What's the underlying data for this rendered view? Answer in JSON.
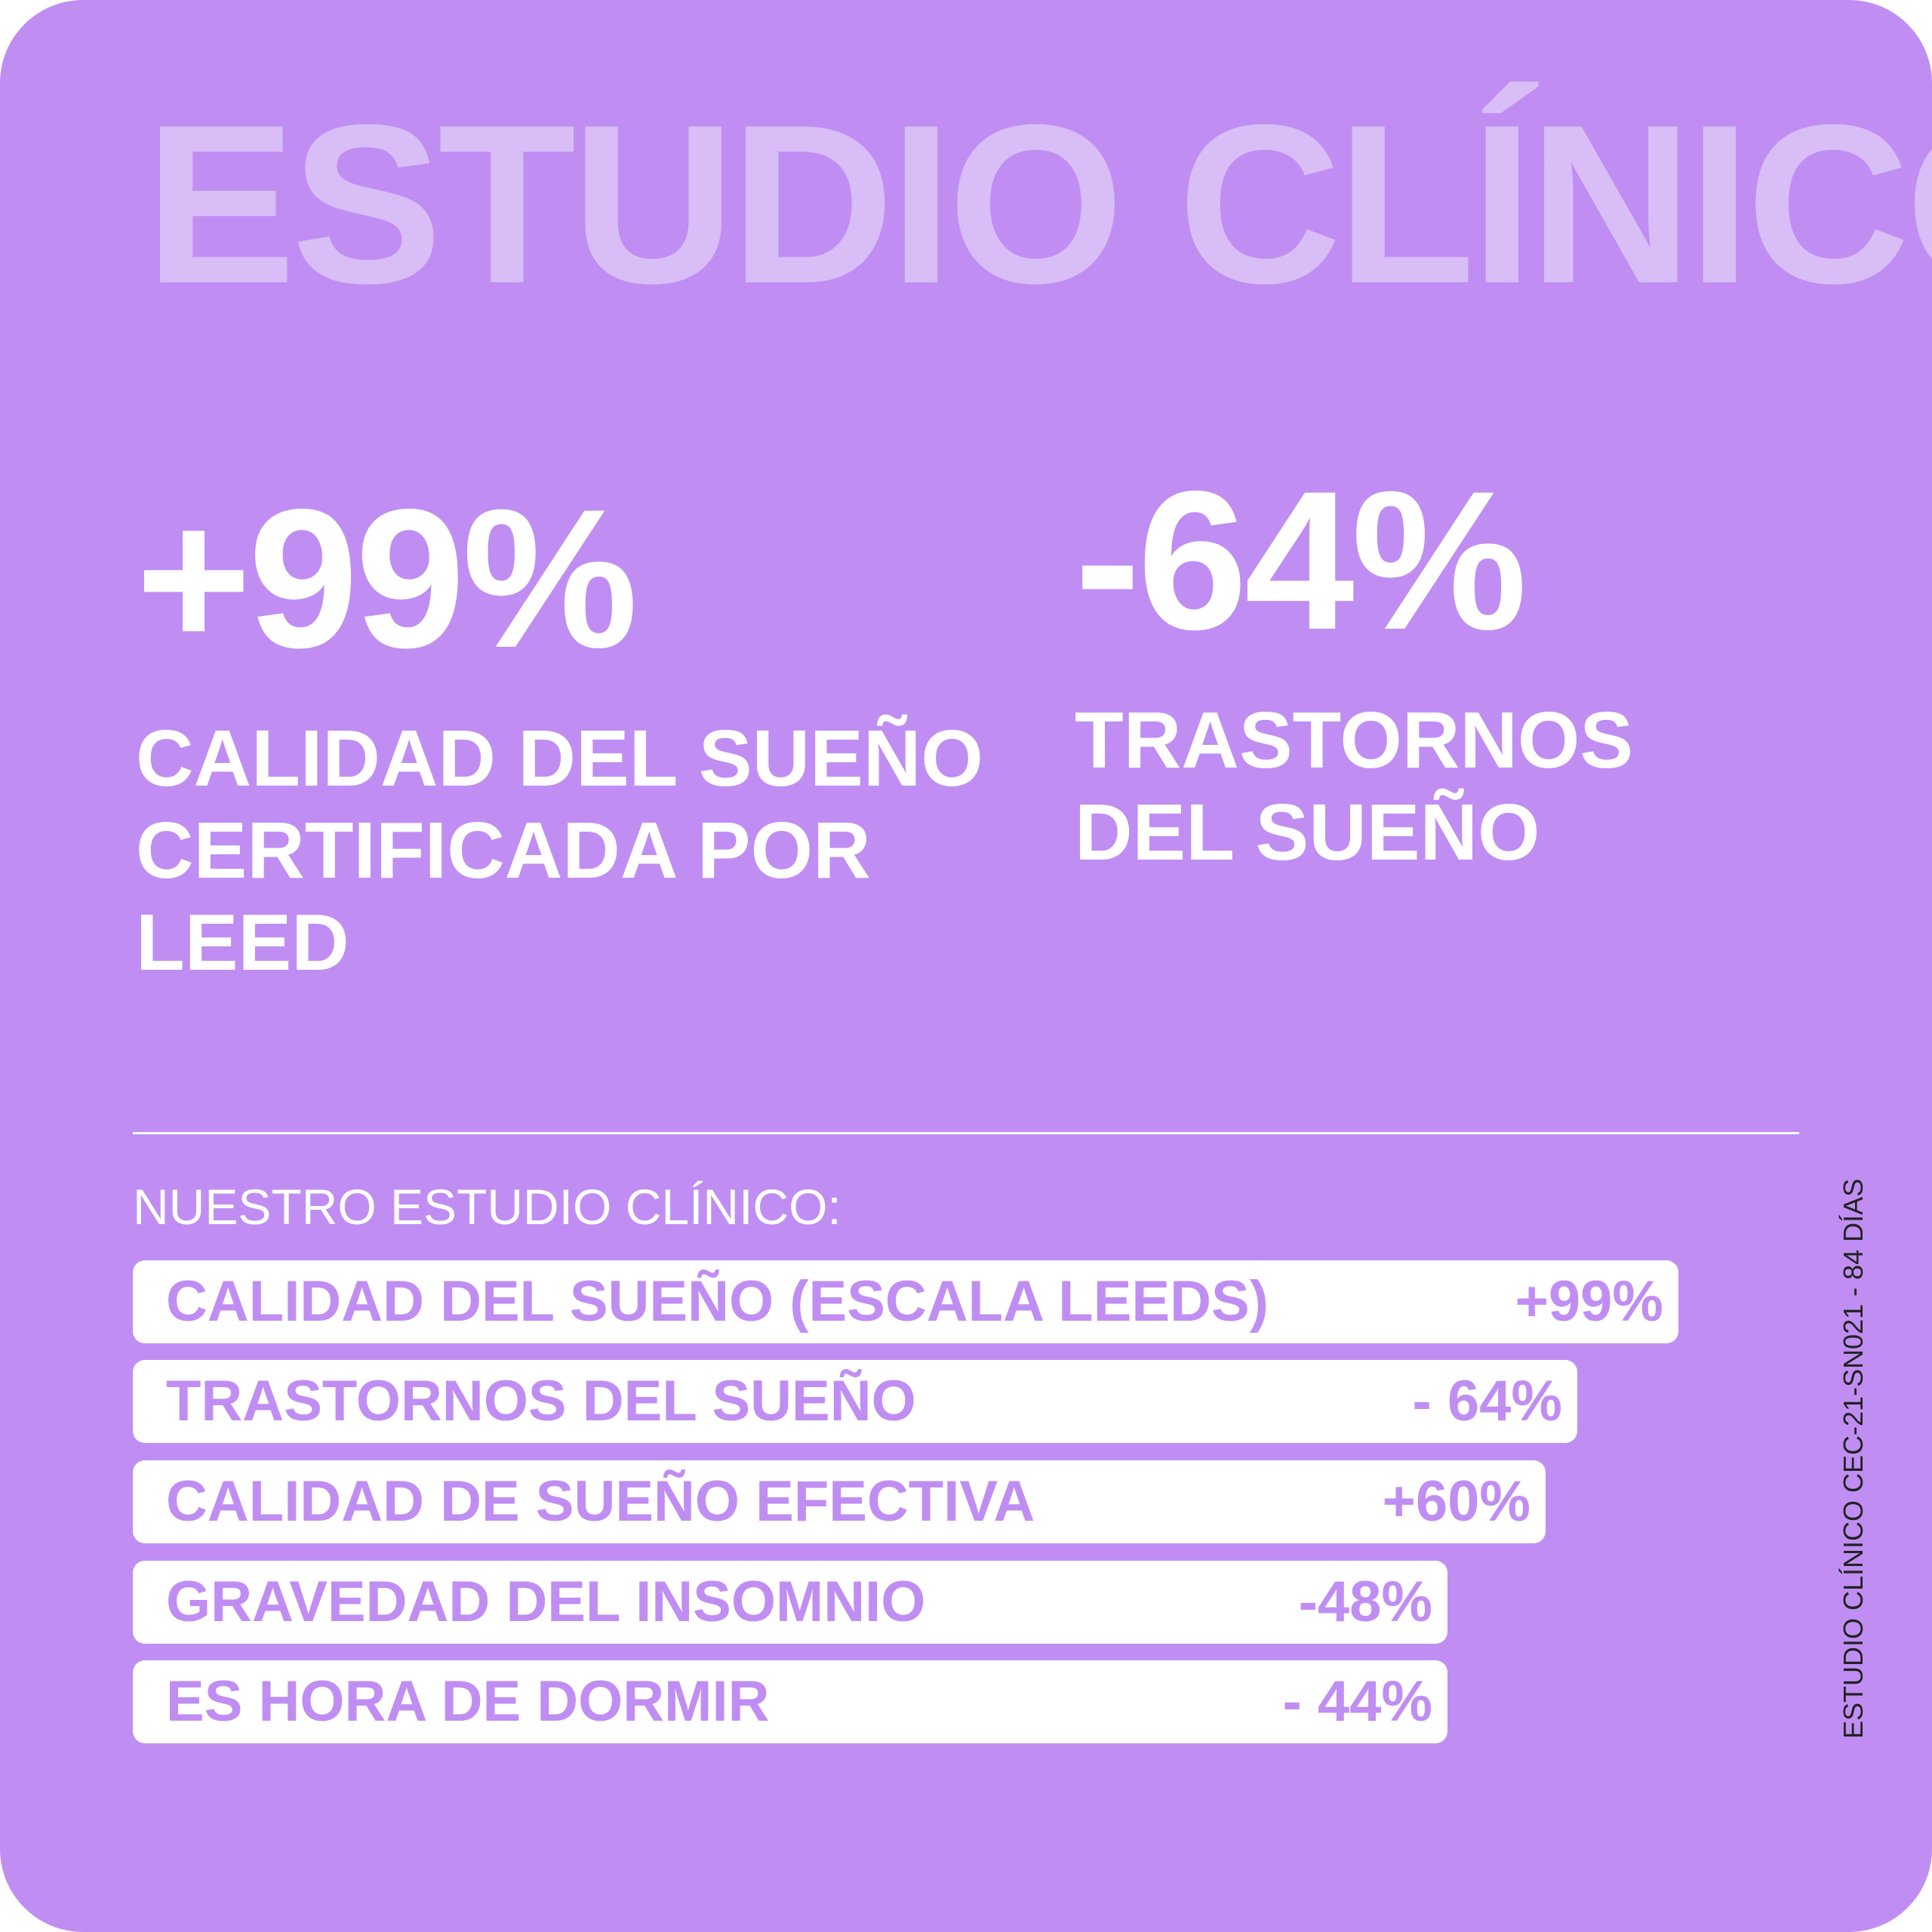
{
  "title": "ESTUDIO CLÍNICO",
  "highlights": [
    {
      "value": "+99%",
      "label": "CALIDAD DEL SUEÑO\nCERTIFICADA POR\nLEED"
    },
    {
      "value": "-64%",
      "label": "TRASTORNOS\nDEL SUEÑO"
    }
  ],
  "section_heading": "NUESTRO ESTUDIO CLÍNICO:",
  "results": [
    {
      "label": "CALIDAD DEL SUEÑO (ESCALA LEEDS)",
      "value": "+99%"
    },
    {
      "label": "TRASTORNOS DEL SUEÑO",
      "value": "- 64%"
    },
    {
      "label": "CALIDAD DE SUEÑO EFECTIVA",
      "value": "+60%"
    },
    {
      "label": "GRAVEDAD DEL INSOMNIO",
      "value": "-48%"
    },
    {
      "label": "ES HORA DE DORMIR",
      "value": "- 44%"
    }
  ],
  "study_reference": "ESTUDIO CLÍNICO CEC-21-SN021 - 84 DÍAS",
  "colors": {
    "background": "#c08ef2",
    "title": "#d9bdf7",
    "text": "#ffffff",
    "row_background": "#ffffff",
    "row_text": "#c08ef2"
  }
}
